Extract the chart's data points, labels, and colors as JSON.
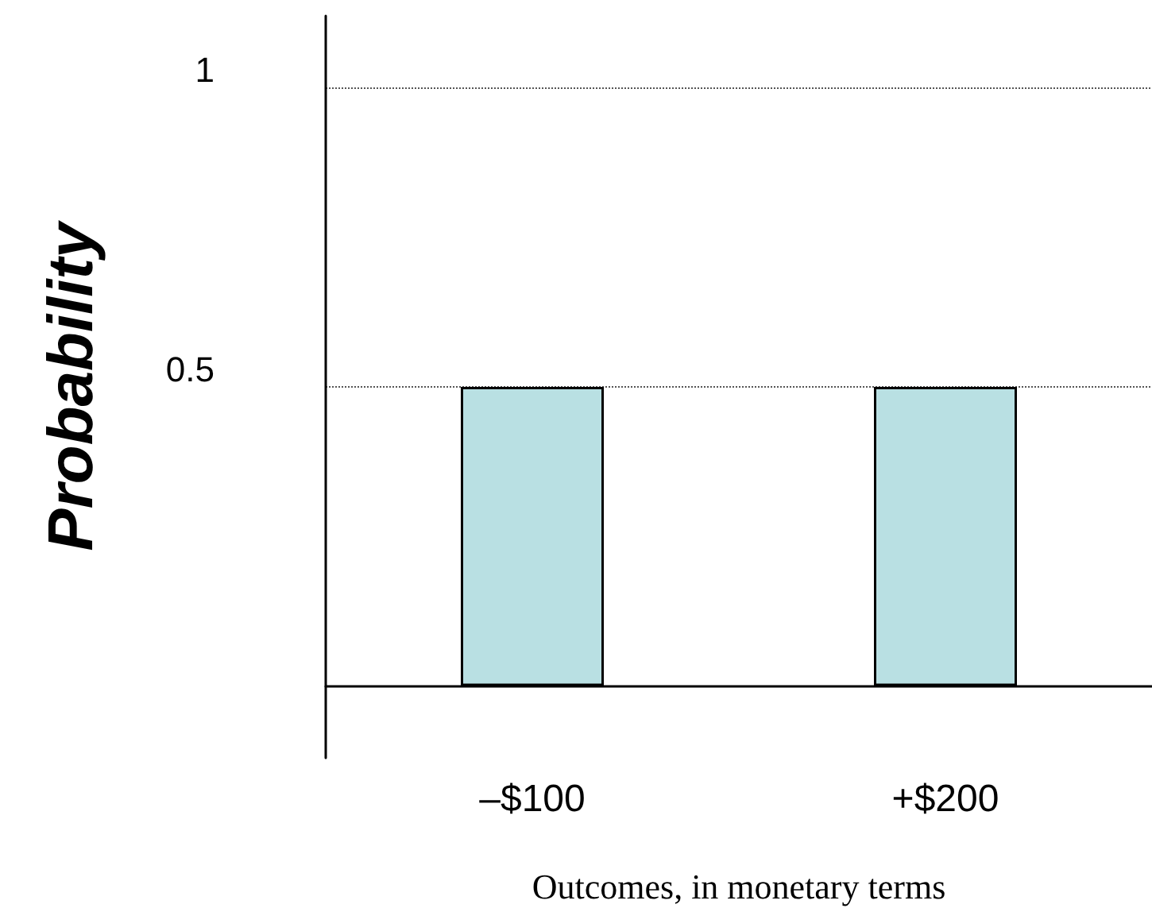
{
  "chart_data": {
    "type": "bar",
    "categories": [
      "–$100",
      "+$200"
    ],
    "values": [
      0.5,
      0.5
    ],
    "color": "#b9e0e3",
    "xlabel": "Outcomes, in monetary terms",
    "ylabel": "Probability",
    "ylim": [
      -0.12,
      1.12
    ],
    "yticks": [
      0.5,
      1
    ],
    "grid": "y"
  }
}
